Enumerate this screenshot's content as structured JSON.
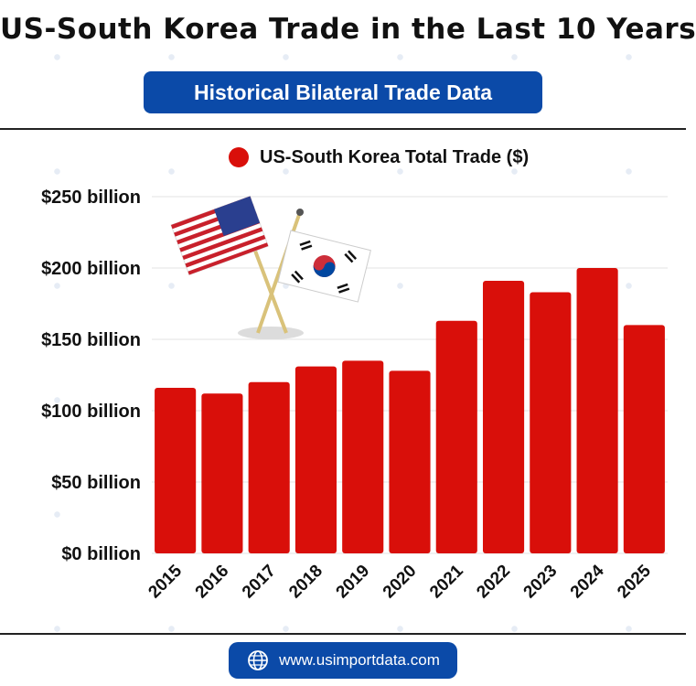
{
  "header": {
    "title": "US-South Korea Trade in the Last 10 Years",
    "subtitle": "Historical Bilateral Trade Data"
  },
  "footer": {
    "website": "www.usimportdata.com",
    "icon": "globe-icon"
  },
  "colors": {
    "bar": "#d90f0a",
    "accent": "#0b4aa8"
  },
  "chart_data": {
    "type": "bar",
    "legend": "US-South Korea Total Trade ($)",
    "legend_position": "top",
    "categories": [
      "2015",
      "2016",
      "2017",
      "2018",
      "2019",
      "2020",
      "2021",
      "2022",
      "2023",
      "2024",
      "2025"
    ],
    "series": [
      {
        "name": "US-South Korea Total Trade ($)",
        "values": [
          116,
          112,
          120,
          131,
          135,
          128,
          163,
          191,
          183,
          200,
          160
        ]
      }
    ],
    "yticks": [
      "$0 billion",
      "$50 billion",
      "$100 billion",
      "$150 billion",
      "$200 billion",
      "$250 billion"
    ],
    "ylim": [
      0,
      250
    ],
    "grid": true,
    "decoration": "crossed-us-south-korea-flags"
  }
}
